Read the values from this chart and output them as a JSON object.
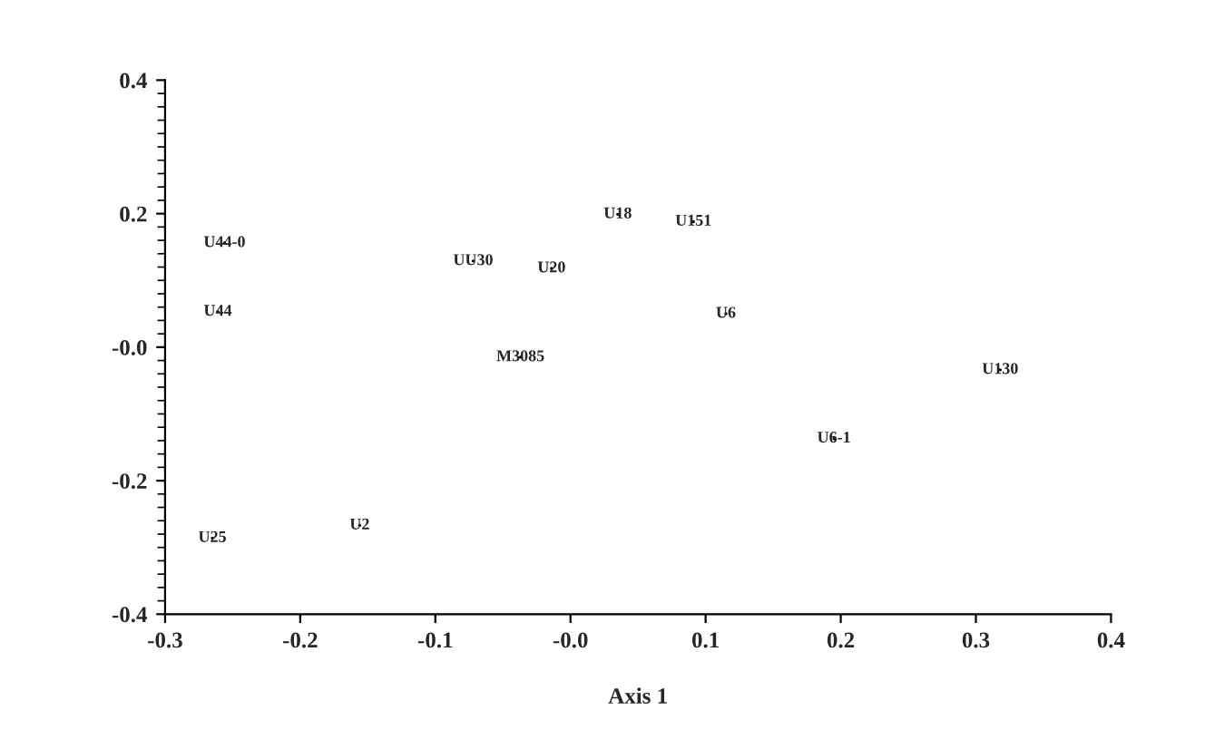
{
  "chart_data": {
    "type": "scatter",
    "xlabel": "Axis 1",
    "grid": false,
    "xlim": [
      -0.3,
      0.4
    ],
    "ylim": [
      -0.4,
      0.4
    ],
    "xticks": [
      -0.3,
      -0.2,
      -0.1,
      {
        "value": 0,
        "label": "-0.0"
      },
      0.1,
      0.2,
      0.3,
      0.4
    ],
    "yticks": [
      -0.4,
      -0.2,
      {
        "value": 0,
        "label": "-0.0"
      },
      0.2,
      0.4
    ],
    "x": [
      -0.256,
      -0.261,
      -0.072,
      -0.014,
      -0.037,
      0.035,
      0.091,
      0.115,
      0.318,
      0.195,
      -0.265,
      -0.156
    ],
    "values": [
      0.156,
      0.053,
      0.129,
      0.118,
      -0.015,
      0.199,
      0.188,
      0.05,
      -0.034,
      -0.137,
      -0.286,
      -0.267
    ],
    "value_labels": [
      "U44-0",
      "U44",
      "UU30",
      "U20",
      "M3085",
      "U18",
      "U151",
      "U6",
      "U130",
      "U6-1",
      "U25",
      "U2"
    ]
  }
}
